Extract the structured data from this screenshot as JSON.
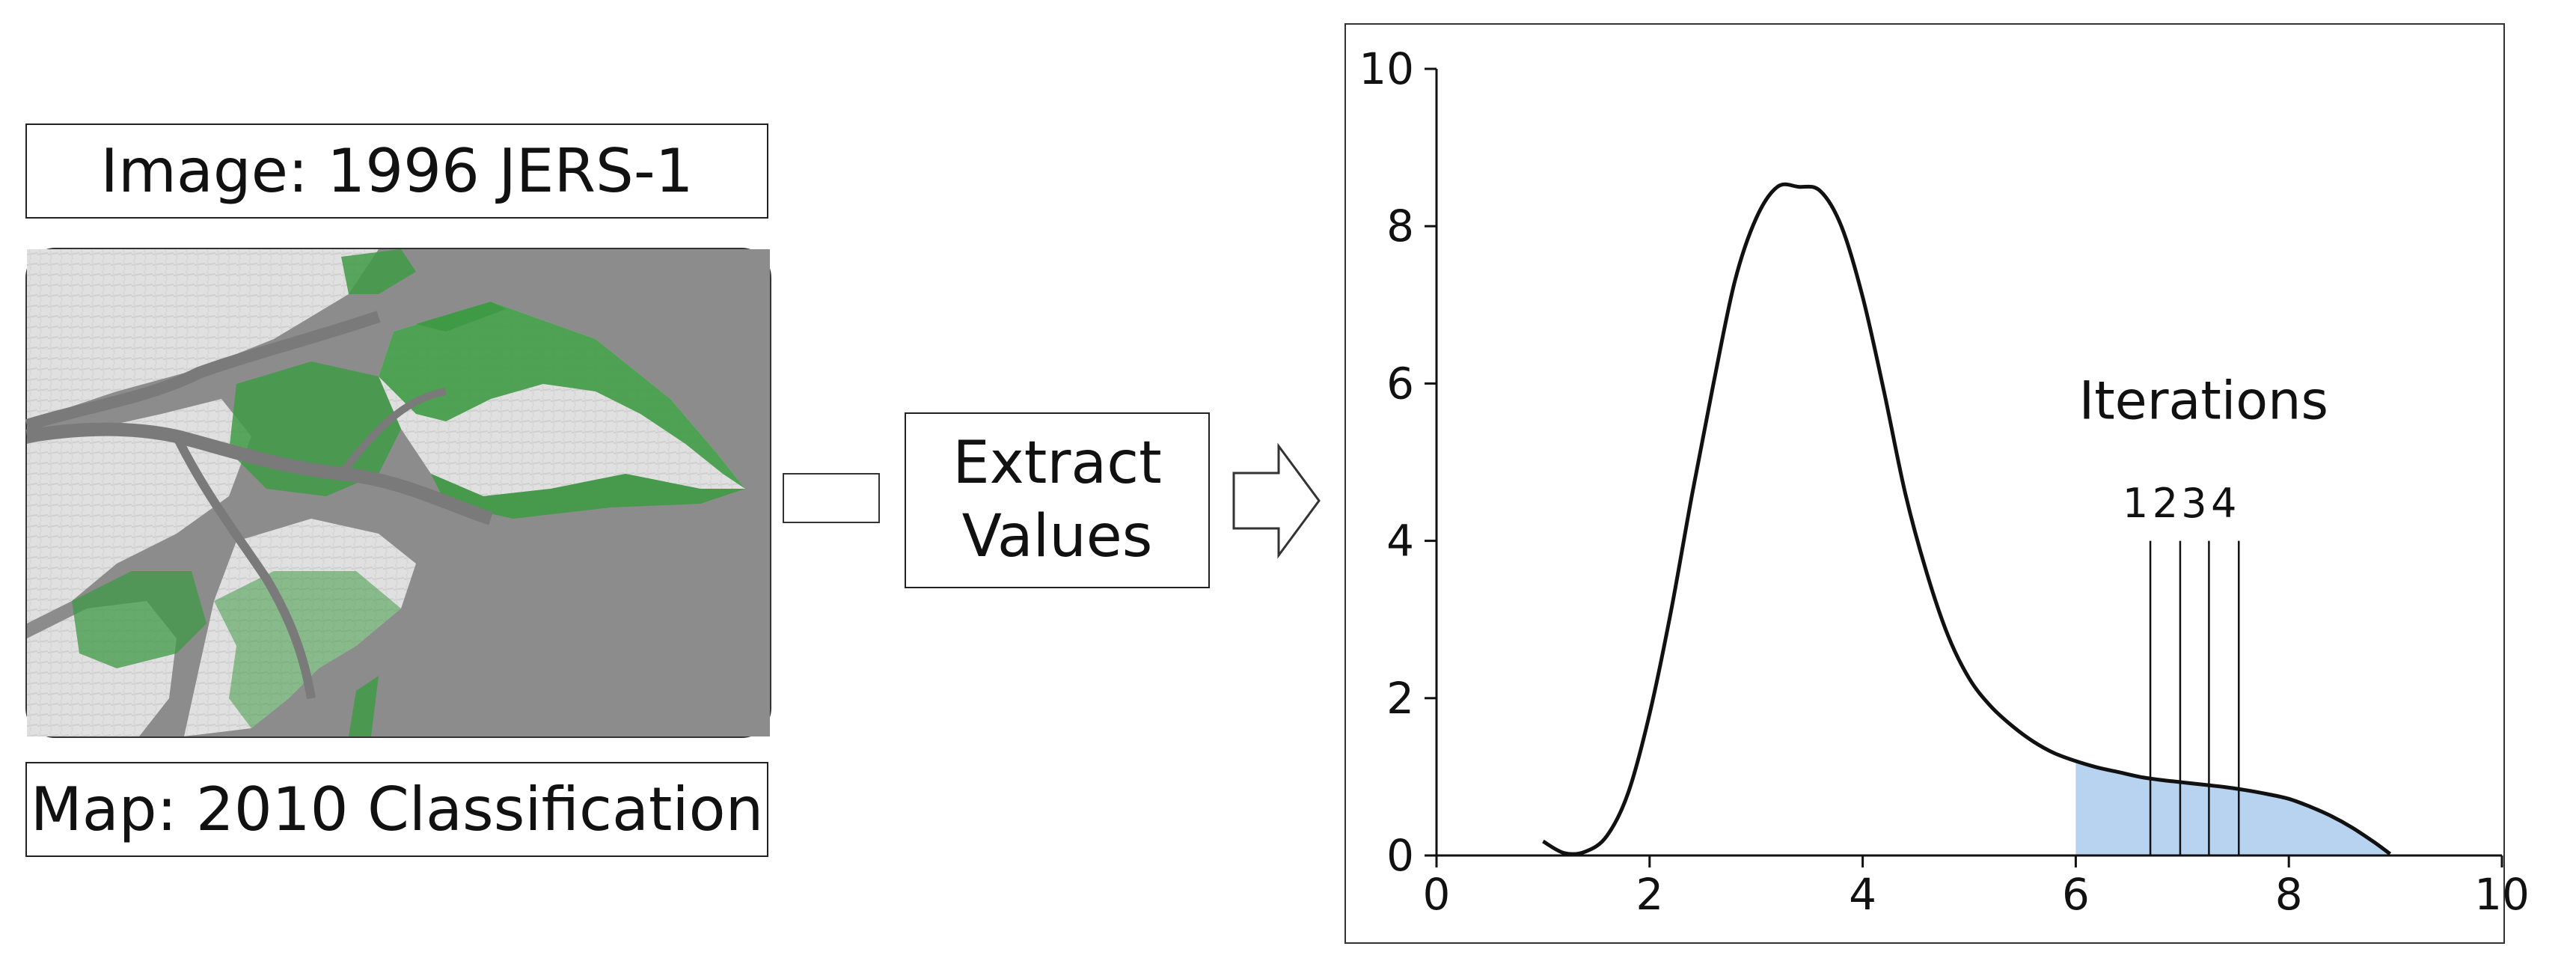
{
  "left_panel": {
    "top_label": "Image: 1996 JERS-1",
    "bottom_label": "Map: 2010 Classification",
    "colors": {
      "background": "#8c8c8c",
      "land": "#e3e3e3",
      "mangrove": "#3f9a45",
      "river": "#777777"
    }
  },
  "process": {
    "line1": "Extract",
    "line2": "Values"
  },
  "chart_data": {
    "type": "area",
    "title": "",
    "xlabel": "",
    "ylabel": "",
    "xlim": [
      0,
      10
    ],
    "ylim": [
      0,
      10
    ],
    "x_ticks": [
      0,
      2,
      4,
      6,
      8,
      10
    ],
    "y_ticks": [
      0,
      2,
      4,
      6,
      8,
      10
    ],
    "series": [
      {
        "x": [
          1.0,
          1.2,
          1.4,
          1.6,
          1.8,
          2.0,
          2.2,
          2.4,
          2.6,
          2.8,
          3.0,
          3.2,
          3.4,
          3.6,
          3.8,
          4.0,
          4.2,
          4.4,
          4.6,
          4.8,
          5.0,
          5.2,
          5.4,
          5.6,
          5.8,
          6.0,
          6.2,
          6.4,
          6.6,
          6.8,
          7.0,
          7.2,
          7.4,
          7.6,
          7.8,
          8.0,
          8.2,
          8.4,
          8.6,
          8.8,
          8.95
        ],
        "values": [
          0.18,
          0.03,
          0.05,
          0.25,
          0.8,
          1.8,
          3.1,
          4.6,
          6.0,
          7.3,
          8.1,
          8.5,
          8.5,
          8.45,
          8.0,
          7.1,
          5.9,
          4.6,
          3.6,
          2.8,
          2.25,
          1.9,
          1.65,
          1.45,
          1.3,
          1.2,
          1.12,
          1.06,
          1.0,
          0.96,
          0.93,
          0.9,
          0.87,
          0.83,
          0.78,
          0.72,
          0.62,
          0.5,
          0.35,
          0.17,
          0.02
        ]
      }
    ],
    "shaded_region": {
      "x_from": 6.0,
      "x_to": 8.95,
      "color": "#b8d3ef"
    },
    "annotation": {
      "title": "Iterations",
      "lines": [
        {
          "label": "1",
          "x": 6.7
        },
        {
          "label": "2",
          "x": 6.98
        },
        {
          "label": "3",
          "x": 7.25
        },
        {
          "label": "4",
          "x": 7.53
        }
      ]
    },
    "grid": false
  }
}
